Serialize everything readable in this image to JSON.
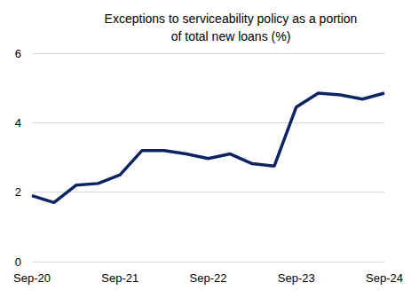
{
  "chart_data": {
    "type": "line",
    "title": "Exceptions to serviceability policy as a portion\nof total new loans (%)",
    "categories": [
      "Sep-20",
      null,
      null,
      null,
      "Sep-21",
      null,
      null,
      null,
      "Sep-22",
      null,
      null,
      null,
      "Sep-23",
      null,
      null,
      null,
      "Sep-24"
    ],
    "values": [
      1.9,
      1.7,
      2.2,
      2.25,
      2.5,
      3.2,
      3.2,
      3.1,
      2.97,
      3.1,
      2.82,
      2.75,
      4.45,
      4.85,
      4.8,
      4.68,
      4.85
    ],
    "color": "#0c2461",
    "ylim": [
      0,
      6
    ],
    "yticks": [
      0,
      2,
      4,
      6
    ],
    "grid": true
  }
}
